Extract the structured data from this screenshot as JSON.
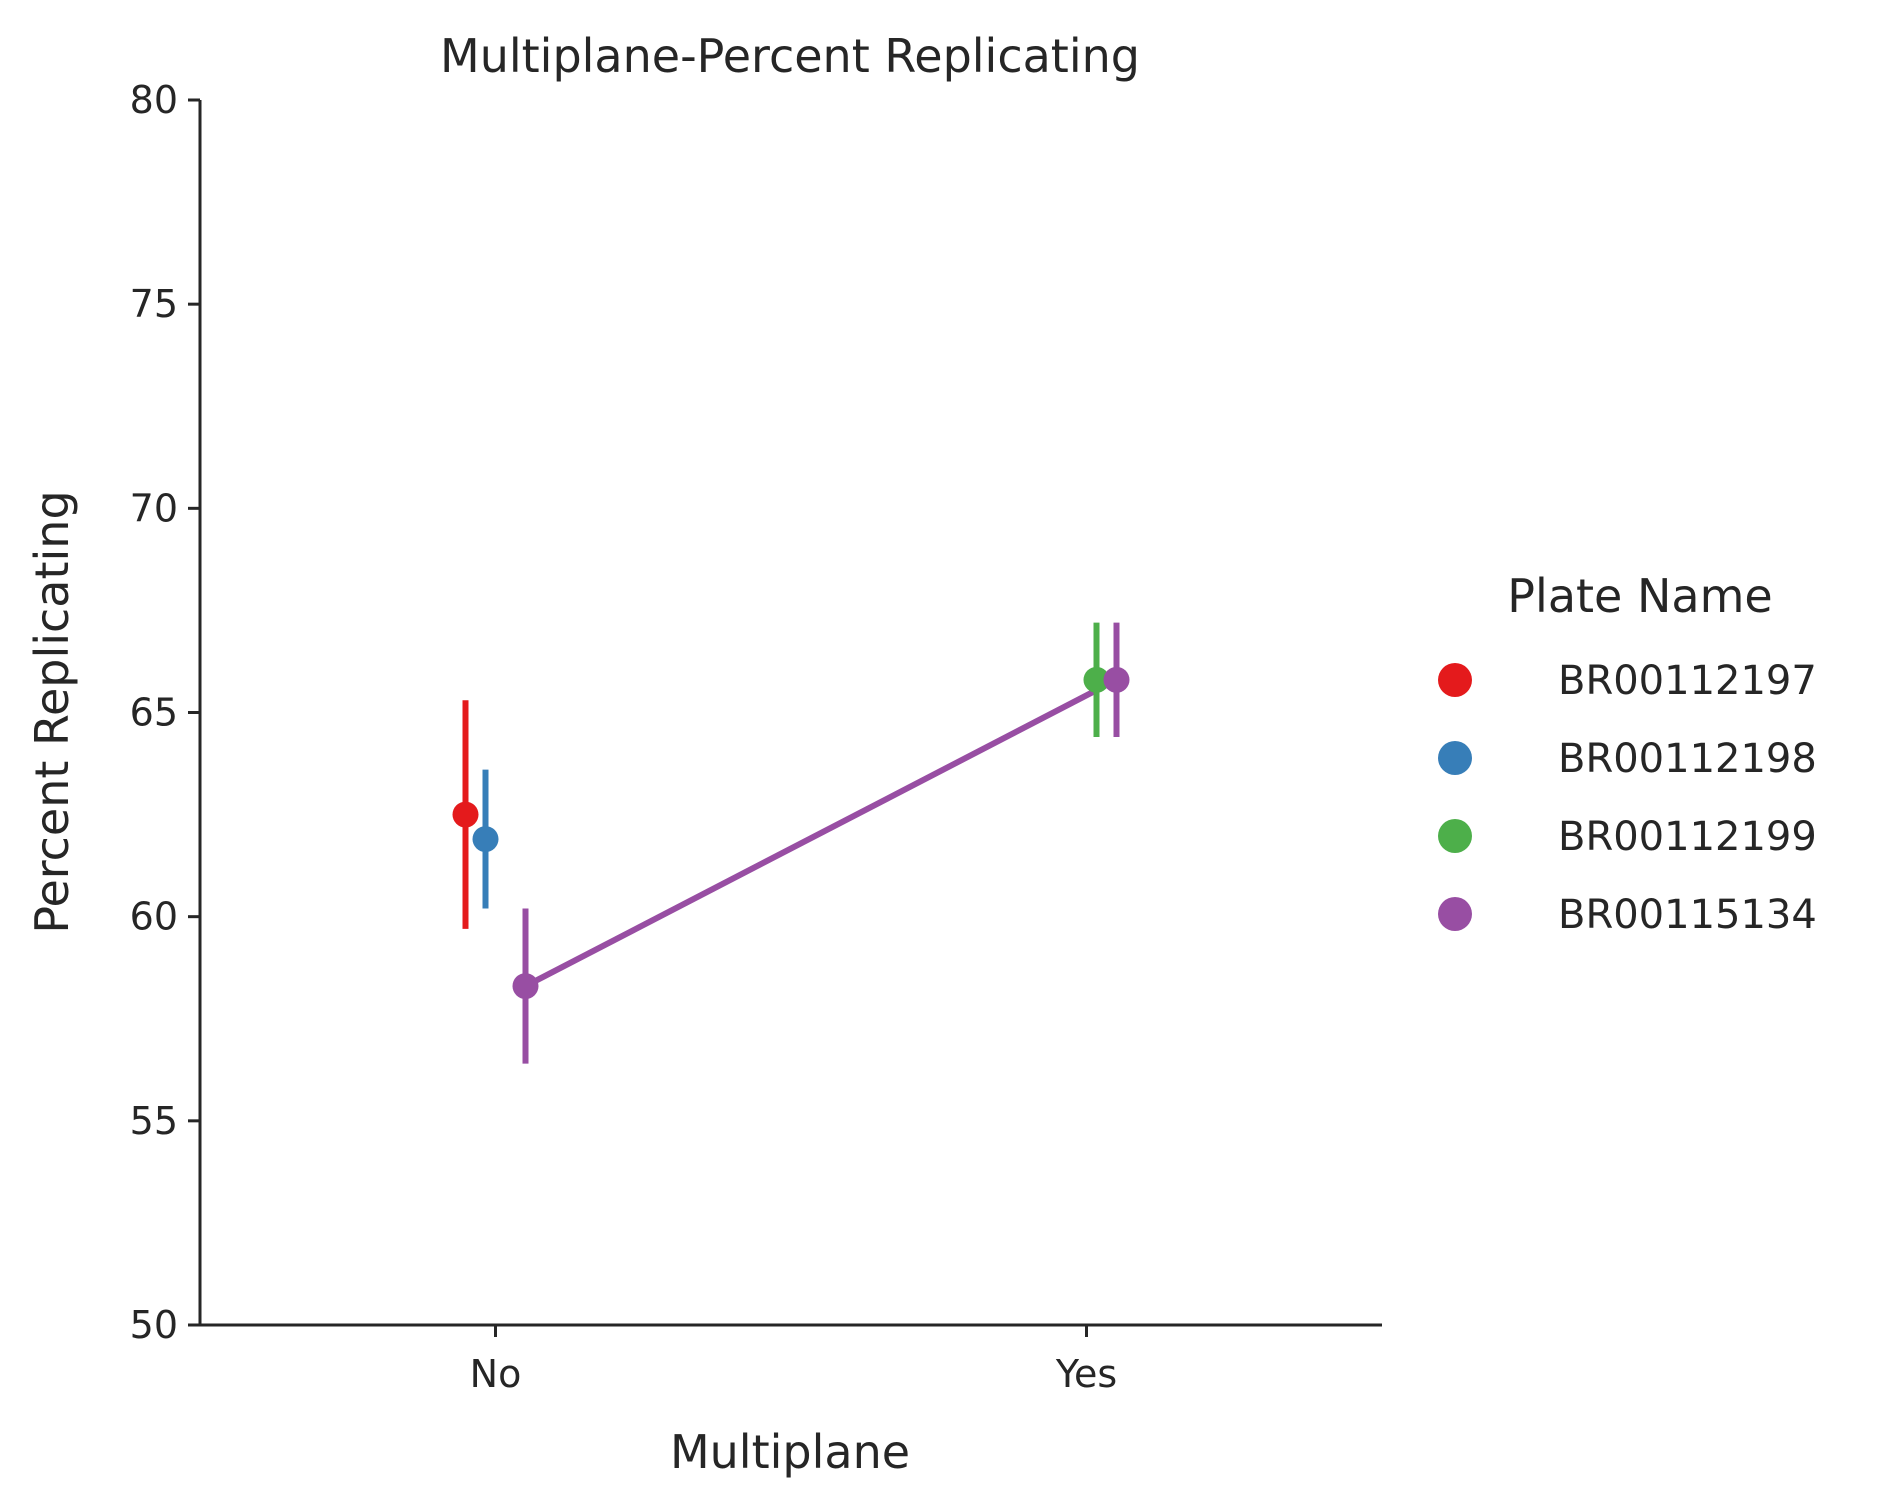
{
  "chart_data": {
    "type": "point",
    "title": "Multiplane-Percent Replicating",
    "xlabel": "Multiplane",
    "ylabel": "Percent Replicating",
    "categories": [
      "No",
      "Yes"
    ],
    "ylim": [
      50,
      80
    ],
    "yticks": [
      "50",
      "55",
      "60",
      "65",
      "70",
      "75",
      "80"
    ],
    "grid": false,
    "legend": {
      "title": "Plate Name",
      "placement": "right"
    },
    "series": [
      {
        "name": "BR00112197",
        "color": "#e41a1c",
        "points": [
          {
            "category": "No",
            "value": 62.5,
            "ci": [
              59.7,
              65.3
            ]
          }
        ]
      },
      {
        "name": "BR00112198",
        "color": "#377eb8",
        "points": [
          {
            "category": "No",
            "value": 61.9,
            "ci": [
              60.2,
              63.6
            ]
          }
        ]
      },
      {
        "name": "BR00112199",
        "color": "#4daf4a",
        "points": [
          {
            "category": "Yes",
            "value": 65.8,
            "ci": [
              64.4,
              67.2
            ]
          }
        ]
      },
      {
        "name": "BR00115134",
        "color": "#984ea3",
        "points": [
          {
            "category": "No",
            "value": 58.3,
            "ci": [
              56.4,
              60.2
            ]
          },
          {
            "category": "Yes",
            "value": 65.8,
            "ci": [
              64.4,
              67.2
            ]
          }
        ]
      }
    ]
  }
}
